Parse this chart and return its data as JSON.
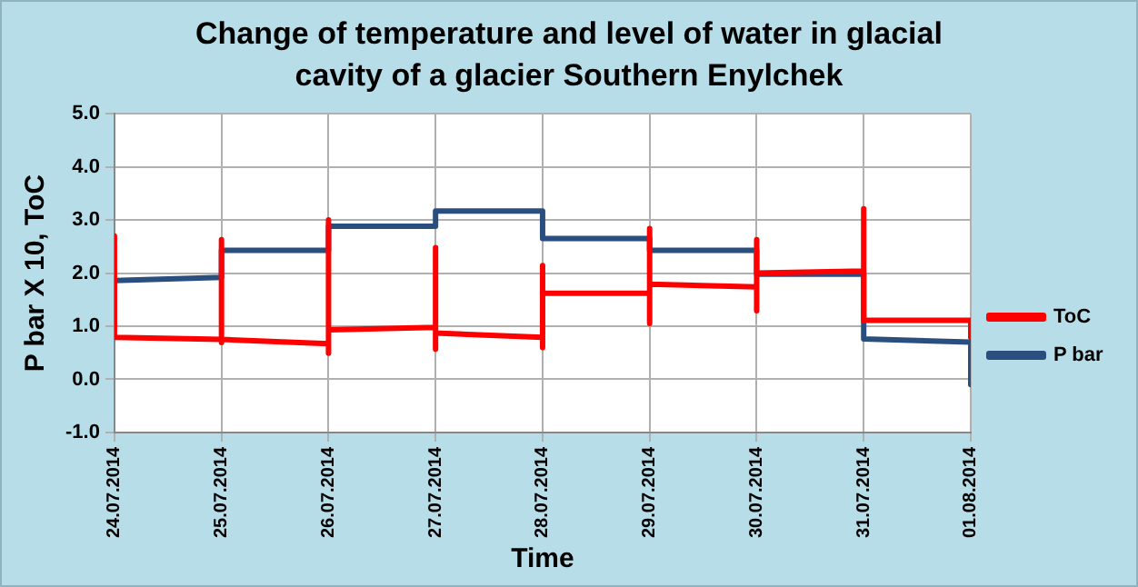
{
  "chart_data": {
    "type": "line",
    "title": "Change of temperature and level of water in glacial  cavity of a glacier Southern Enylchek",
    "xlabel": "Time",
    "ylabel": "P bar X 10, ToC",
    "series": [
      {
        "name": "ToC",
        "color": "#ff0000",
        "x": [
          "2014-07-24",
          "2014-07-24",
          "2014-07-25",
          "2014-07-25",
          "2014-07-25",
          "2014-07-25",
          "2014-07-26",
          "2014-07-26",
          "2014-07-26",
          "2014-07-26",
          "2014-07-27",
          "2014-07-27",
          "2014-07-27",
          "2014-07-27",
          "2014-07-28",
          "2014-07-28",
          "2014-07-28",
          "2014-07-28",
          "2014-07-29",
          "2014-07-29",
          "2014-07-29",
          "2014-07-29",
          "2014-07-30",
          "2014-07-30",
          "2014-07-30",
          "2014-07-30",
          "2014-07-31",
          "2014-07-31",
          "2014-07-31",
          "2014-08-01",
          "2014-08-01"
        ],
        "values": [
          2.7,
          0.79,
          0.75,
          2.63,
          0.69,
          0.75,
          0.67,
          3.0,
          0.49,
          0.93,
          0.98,
          2.48,
          0.57,
          0.87,
          0.79,
          2.14,
          0.6,
          1.62,
          1.62,
          2.84,
          1.05,
          1.79,
          1.74,
          2.63,
          1.29,
          2.0,
          2.04,
          3.21,
          1.11,
          1.11,
          0.79
        ]
      },
      {
        "name": "P bar",
        "color": "#2a4f7f",
        "x": [
          "2014-07-24",
          "2014-07-24",
          "2014-07-25",
          "2014-07-25",
          "2014-07-26",
          "2014-07-26",
          "2014-07-27",
          "2014-07-27",
          "2014-07-28",
          "2014-07-28",
          "2014-07-29",
          "2014-07-29",
          "2014-07-30",
          "2014-07-30",
          "2014-07-31",
          "2014-07-31",
          "2014-08-01",
          "2014-08-01"
        ],
        "values": [
          0.99,
          1.86,
          1.92,
          2.43,
          2.43,
          2.88,
          2.88,
          3.17,
          3.17,
          2.65,
          2.65,
          2.43,
          2.43,
          1.98,
          1.98,
          0.76,
          0.7,
          -0.1
        ]
      }
    ],
    "xlim": [
      "2014-07-24",
      "2014-08-01"
    ],
    "xticks": [
      {
        "value": "2014-07-24",
        "label": "24.07.2014"
      },
      {
        "value": "2014-07-25",
        "label": "25.07.2014"
      },
      {
        "value": "2014-07-26",
        "label": "26.07.2014"
      },
      {
        "value": "2014-07-27",
        "label": "27.07.2014"
      },
      {
        "value": "2014-07-28",
        "label": "28.07.2014"
      },
      {
        "value": "2014-07-29",
        "label": "29.07.2014"
      },
      {
        "value": "2014-07-30",
        "label": "30.07.2014"
      },
      {
        "value": "2014-07-31",
        "label": "31.07.2014"
      },
      {
        "value": "2014-08-01",
        "label": "01.08.2014"
      }
    ],
    "ylim": [
      -1,
      5
    ],
    "yticks": [
      {
        "value": -1,
        "label": "-1.0"
      },
      {
        "value": 0,
        "label": "0.0"
      },
      {
        "value": 1,
        "label": "1.0"
      },
      {
        "value": 2,
        "label": "2.0"
      },
      {
        "value": 3,
        "label": "3.0"
      },
      {
        "value": 4,
        "label": "4.0"
      },
      {
        "value": 5,
        "label": "5.0"
      }
    ],
    "grid": true,
    "legend": "right",
    "marker": "none",
    "line_style": "solid"
  }
}
